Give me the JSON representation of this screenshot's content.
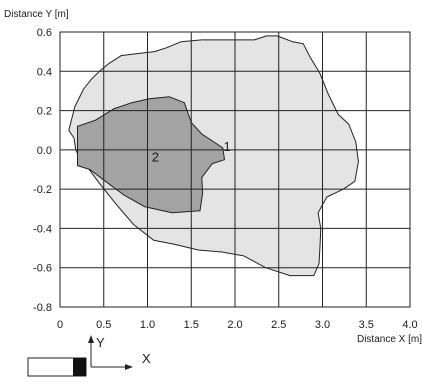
{
  "chart_data": {
    "type": "area",
    "xlabel": "Distance X [m]",
    "ylabel": "Distance Y [m]",
    "xlim": [
      0,
      4.0
    ],
    "ylim": [
      -0.8,
      0.6
    ],
    "xticks": [
      "0",
      "0.5",
      "1.0",
      "1.5",
      "2.0",
      "2.5",
      "3.0",
      "3.5",
      "4.0"
    ],
    "yticks": [
      "0.6",
      "0.4",
      "0.2",
      "0.0",
      "-0.2",
      "-0.4",
      "-0.6",
      "-0.8"
    ],
    "grid": true,
    "series": [
      {
        "name": "1",
        "color": "#e4e4e4",
        "stroke": "#222222",
        "outline": [
          [
            0.1,
            0.1
          ],
          [
            0.17,
            0.22
          ],
          [
            0.27,
            0.31
          ],
          [
            0.36,
            0.36
          ],
          [
            0.45,
            0.4
          ],
          [
            0.56,
            0.44
          ],
          [
            0.7,
            0.48
          ],
          [
            0.88,
            0.49
          ],
          [
            1.08,
            0.5
          ],
          [
            1.22,
            0.52
          ],
          [
            1.38,
            0.55
          ],
          [
            1.62,
            0.56
          ],
          [
            1.92,
            0.56
          ],
          [
            2.22,
            0.56
          ],
          [
            2.36,
            0.58
          ],
          [
            2.48,
            0.58
          ],
          [
            2.66,
            0.55
          ],
          [
            2.78,
            0.54
          ],
          [
            2.86,
            0.47
          ],
          [
            2.97,
            0.39
          ],
          [
            3.07,
            0.28
          ],
          [
            3.18,
            0.18
          ],
          [
            3.3,
            0.13
          ],
          [
            3.38,
            0.04
          ],
          [
            3.41,
            -0.06
          ],
          [
            3.37,
            -0.16
          ],
          [
            3.24,
            -0.2
          ],
          [
            3.05,
            -0.24
          ],
          [
            2.95,
            -0.32
          ],
          [
            2.98,
            -0.4
          ],
          [
            2.97,
            -0.5
          ],
          [
            2.96,
            -0.58
          ],
          [
            2.9,
            -0.64
          ],
          [
            2.63,
            -0.64
          ],
          [
            2.35,
            -0.6
          ],
          [
            2.1,
            -0.54
          ],
          [
            1.85,
            -0.52
          ],
          [
            1.58,
            -0.51
          ],
          [
            1.3,
            -0.48
          ],
          [
            1.07,
            -0.46
          ],
          [
            0.84,
            -0.38
          ],
          [
            0.63,
            -0.27
          ],
          [
            0.45,
            -0.17
          ],
          [
            0.3,
            -0.08
          ],
          [
            0.22,
            -0.04
          ],
          [
            0.18,
            0.0
          ],
          [
            0.16,
            0.06
          ]
        ]
      },
      {
        "name": "2",
        "color": "#a3a3a3",
        "stroke": "#222222",
        "outline": [
          [
            0.2,
            0.12
          ],
          [
            0.4,
            0.15
          ],
          [
            0.62,
            0.21
          ],
          [
            0.82,
            0.24
          ],
          [
            1.02,
            0.26
          ],
          [
            1.25,
            0.27
          ],
          [
            1.42,
            0.24
          ],
          [
            1.5,
            0.14
          ],
          [
            1.62,
            0.08
          ],
          [
            1.76,
            0.04
          ],
          [
            1.86,
            0.01
          ],
          [
            1.88,
            -0.05
          ],
          [
            1.74,
            -0.07
          ],
          [
            1.62,
            -0.14
          ],
          [
            1.63,
            -0.22
          ],
          [
            1.6,
            -0.31
          ],
          [
            1.28,
            -0.32
          ],
          [
            0.97,
            -0.29
          ],
          [
            0.73,
            -0.23
          ],
          [
            0.52,
            -0.16
          ],
          [
            0.34,
            -0.1
          ],
          [
            0.2,
            -0.08
          ]
        ]
      }
    ]
  },
  "legend": {
    "y_label": "Y",
    "x_label": "X"
  }
}
